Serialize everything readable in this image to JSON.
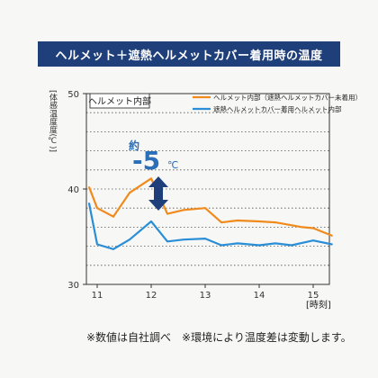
{
  "header": {
    "title": "ヘルメット＋遮熱ヘルメットカバー着用時の温度"
  },
  "footnote": "※数値は自社調べ　※環境により温度差は変動します。",
  "chart_data": {
    "type": "line",
    "title": "ヘルメット＋遮熱ヘルメットカバー着用時の温度",
    "subtitle": "ヘルメット内部",
    "ylabel": "[体感温度度(℃)]",
    "xlabel": "[時刻]",
    "ylim": [
      30,
      50
    ],
    "xlim": [
      10.8,
      15.3
    ],
    "yticks": [
      "30",
      "40",
      "50"
    ],
    "xticks": [
      "11",
      "12",
      "13",
      "14",
      "15"
    ],
    "grid": "horizontal-dotted",
    "legend_position": "top-right",
    "series": [
      {
        "name": "ヘルメット内部（遮熱ヘルメットカバー未着用）",
        "color": "#f08a1c",
        "x": [
          10.85,
          11.0,
          11.3,
          11.6,
          12.0,
          12.3,
          12.6,
          13.0,
          13.3,
          13.6,
          14.0,
          14.3,
          14.8,
          15.0,
          15.35
        ],
        "y": [
          40.2,
          38.0,
          37.1,
          39.6,
          41.1,
          37.4,
          37.8,
          38.0,
          36.5,
          36.7,
          36.6,
          36.5,
          36.0,
          35.9,
          35.1
        ]
      },
      {
        "name": "遮熱ヘルメットカバー着用ヘルメット内部",
        "color": "#2a8ed6",
        "x": [
          10.85,
          11.0,
          11.3,
          11.6,
          12.0,
          12.3,
          12.6,
          13.0,
          13.3,
          13.6,
          14.0,
          14.3,
          14.6,
          15.0,
          15.35
        ],
        "y": [
          38.5,
          34.2,
          33.7,
          34.7,
          36.6,
          34.5,
          34.7,
          34.8,
          34.1,
          34.3,
          34.1,
          34.3,
          34.1,
          34.6,
          34.2
        ]
      }
    ],
    "annotation": {
      "prefix": "約",
      "value": "-5",
      "unit": "℃"
    }
  }
}
